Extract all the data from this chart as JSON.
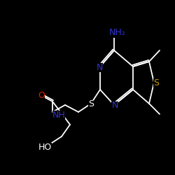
{
  "bg": "#000000",
  "wh": "#ffffff",
  "blue": "#3333cc",
  "yellow": "#cc9900",
  "red": "#dd2200",
  "lw": 1.3,
  "fs": 8.5,
  "figsize": [
    2.5,
    2.5
  ],
  "dpi": 100,
  "NH2": "NH₂",
  "N": "N",
  "S": "S",
  "O": "O",
  "NH": "NH",
  "HO": "HO"
}
